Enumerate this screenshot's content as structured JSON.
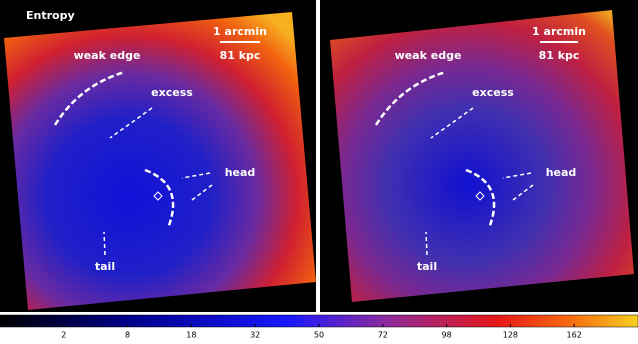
{
  "panels": [
    {
      "title": "Entropy",
      "scale_top": "1 arcmin",
      "scale_bottom": "81 kpc",
      "labels": [
        "weak edge",
        "excess",
        "head",
        "tail"
      ]
    },
    {
      "scale_top": "1 arcmin",
      "scale_bottom": "81 kpc",
      "labels": [
        "weak edge",
        "excess",
        "head",
        "tail"
      ]
    }
  ],
  "colorbar": {
    "lim": [
      0,
      200
    ],
    "scale": "sqrt",
    "ticks": [
      2,
      8,
      18,
      32,
      50,
      72,
      98,
      128,
      162
    ]
  }
}
